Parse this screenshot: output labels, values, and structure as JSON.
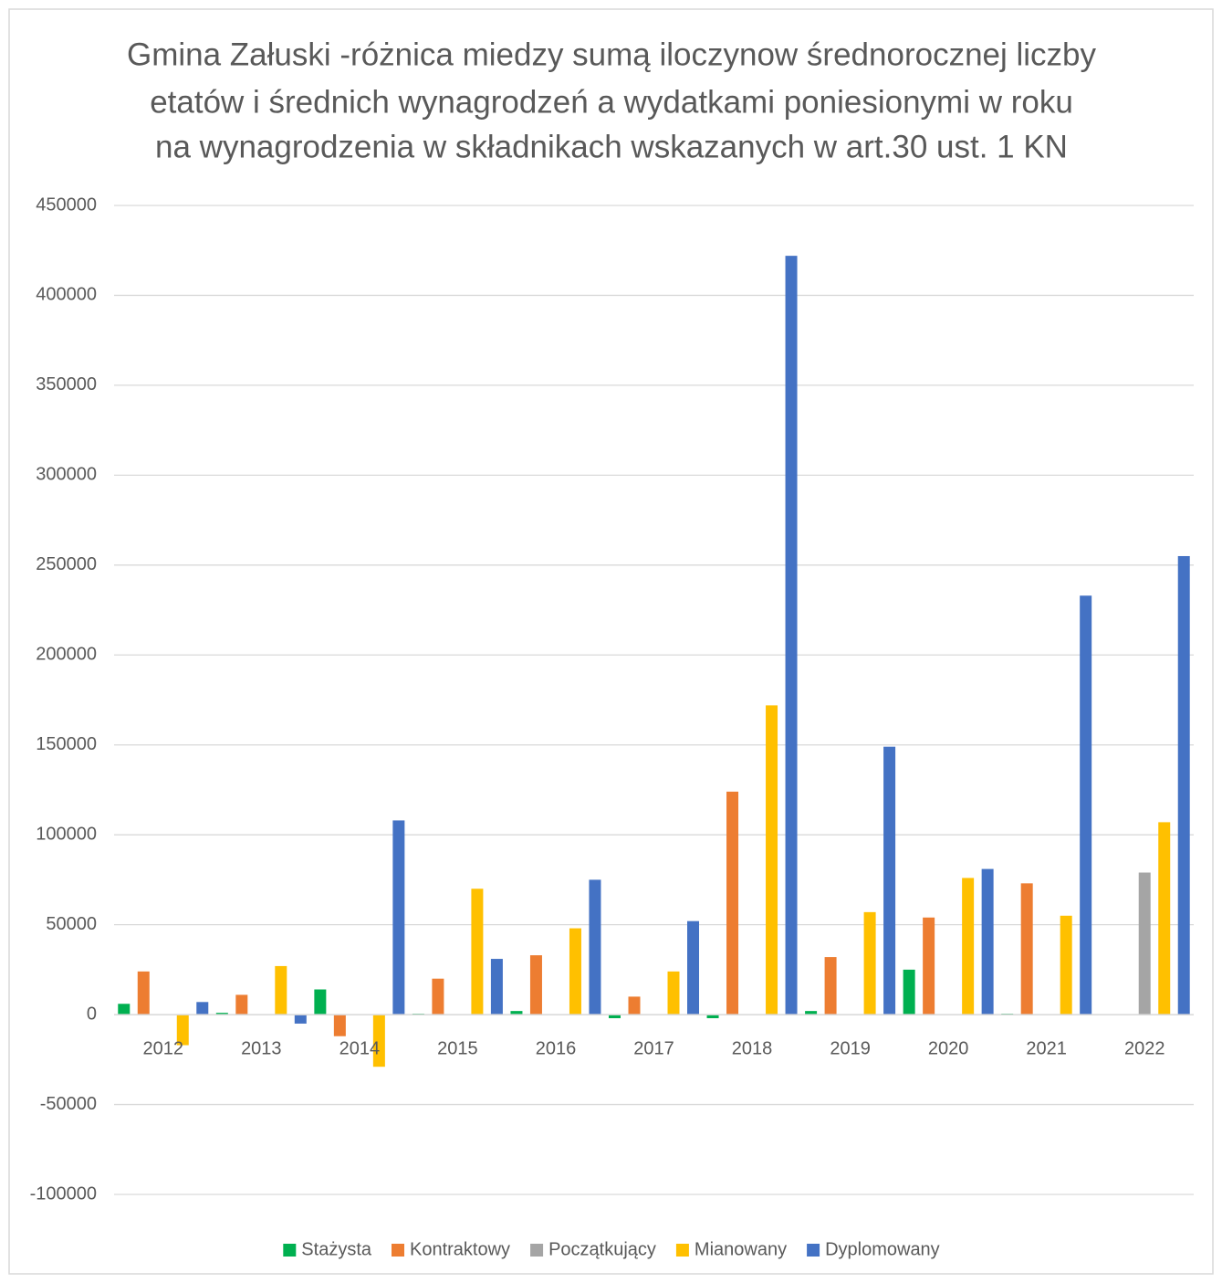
{
  "chart_data": {
    "type": "bar",
    "title": [
      "Gmina Załuski -różnica miedzy sumą iloczynow średnorocznej liczby",
      "etatów i średnich wynagrodzeń a wydatkami poniesionymi w roku",
      "na wynagrodzenia w składnikach wskazanych w art.30 ust. 1 KN"
    ],
    "categories": [
      "2012",
      "2013",
      "2014",
      "2015",
      "2016",
      "2017",
      "2018",
      "2019",
      "2020",
      "2021",
      "2022"
    ],
    "series": [
      {
        "name": "Stażysta",
        "color": "#00b050",
        "values": [
          6000,
          1000,
          14000,
          500,
          2000,
          -2000,
          -2000,
          2000,
          25000,
          500,
          0
        ]
      },
      {
        "name": "Kontraktowy",
        "color": "#ed7d31",
        "values": [
          24000,
          11000,
          -12000,
          20000,
          33000,
          10000,
          124000,
          32000,
          54000,
          73000,
          0
        ]
      },
      {
        "name": "Początkujący",
        "color": "#a5a5a5",
        "values": [
          0,
          0,
          0,
          0,
          0,
          0,
          0,
          0,
          0,
          0,
          79000
        ]
      },
      {
        "name": "Mianowany",
        "color": "#ffc000",
        "values": [
          -17000,
          27000,
          -29000,
          70000,
          48000,
          24000,
          172000,
          57000,
          76000,
          55000,
          107000
        ]
      },
      {
        "name": "Dyplomowany",
        "color": "#4472c4",
        "values": [
          7000,
          -5000,
          108000,
          31000,
          75000,
          52000,
          422000,
          149000,
          81000,
          233000,
          255000
        ]
      }
    ],
    "ylim": [
      -100000,
      450000
    ],
    "yticks": [
      -100000,
      -50000,
      0,
      50000,
      100000,
      150000,
      200000,
      250000,
      300000,
      350000,
      400000,
      450000
    ],
    "grid": true,
    "legend": "bottom"
  }
}
